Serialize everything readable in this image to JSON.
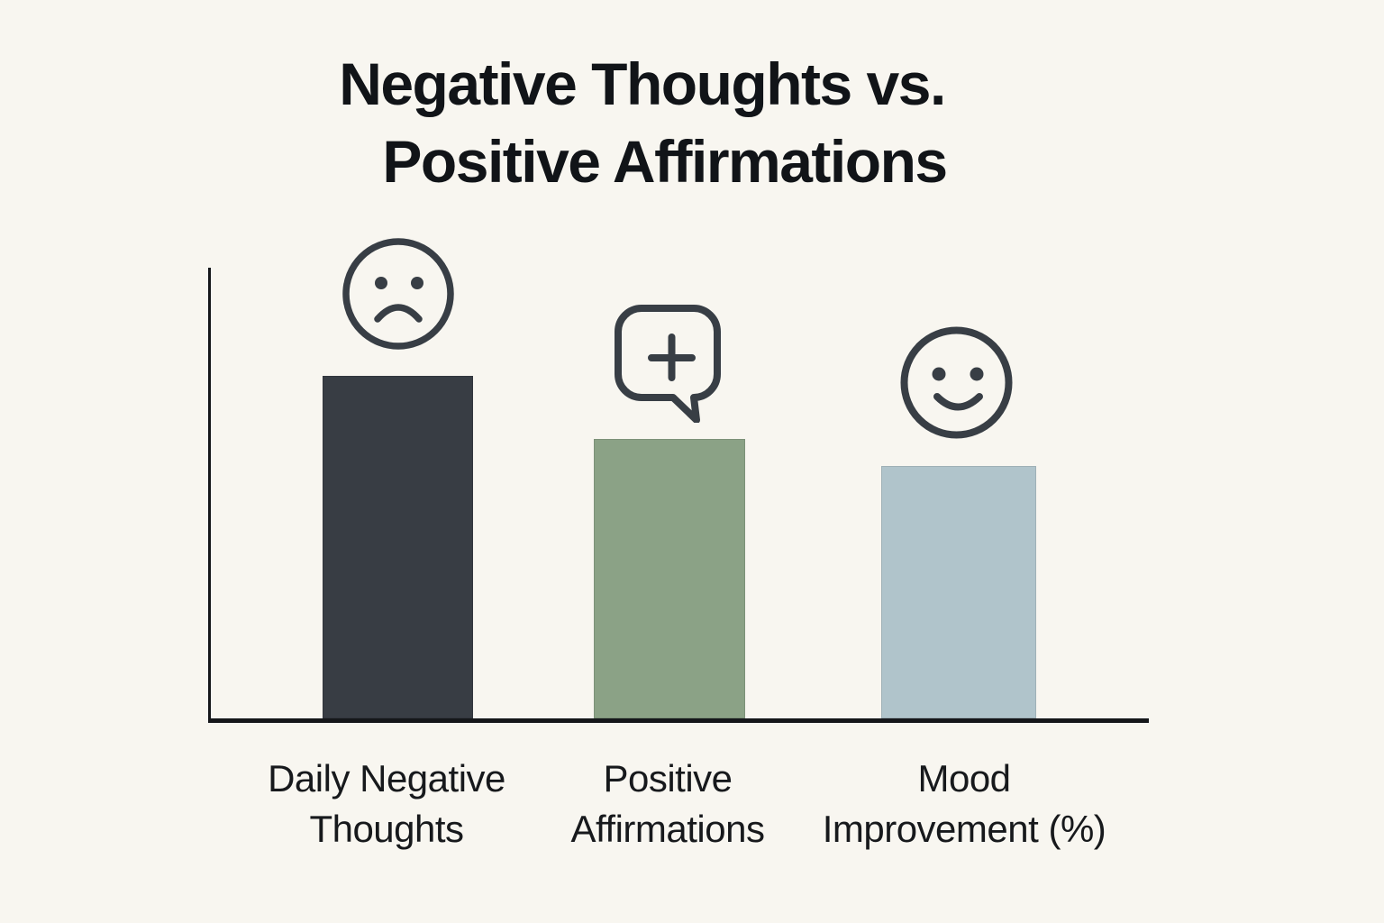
{
  "title": {
    "line1": "Negative Thoughts vs.",
    "line2": "Positive Affirmations"
  },
  "chart_data": {
    "type": "bar",
    "title": "Negative Thoughts vs. Positive Affirmations",
    "categories": [
      "Daily Negative Thoughts",
      "Positive Affirmations",
      "Mood Improvement (%)"
    ],
    "values": [
      76,
      62,
      56
    ],
    "values_note": "no numeric scale shown; values estimated as percent of y-axis height",
    "series_colors": [
      "#383d44",
      "#8ba286",
      "#b0c4cb"
    ],
    "bar_icons": [
      "sad-face",
      "speech-bubble-plus",
      "smiley-face"
    ],
    "xlabel": "",
    "ylabel": "",
    "ylim": [
      0,
      100
    ],
    "grid": false,
    "legend": "none",
    "axis_color": "#15171a",
    "background_color": "#f8f6f0"
  },
  "x_labels": [
    {
      "line1": "Daily Negative",
      "line2": "Thoughts"
    },
    {
      "line1": "Positive",
      "line2": "Affirmations"
    },
    {
      "line1": "Mood",
      "line2": "Improvement (%)"
    }
  ],
  "icon_color": "#383e45"
}
